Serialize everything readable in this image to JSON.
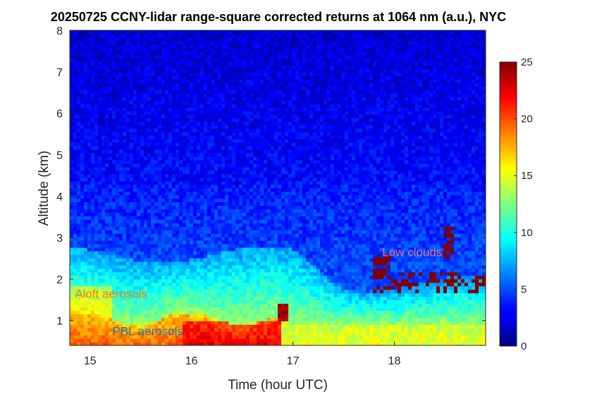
{
  "chart_data": {
    "type": "heatmap",
    "title": "20250725 CCNY-lidar range-square corrected returns at 1064 nm (a.u.), NYC",
    "xlabel": "Time (hour UTC)",
    "ylabel": "Altitude (km)",
    "xlim": [
      14.8,
      18.9
    ],
    "ylim": [
      0.4,
      8
    ],
    "xticks": [
      15,
      16,
      17,
      18
    ],
    "yticks": [
      1,
      2,
      3,
      4,
      5,
      6,
      7,
      8
    ],
    "colorbar": {
      "min": 0,
      "max": 25,
      "ticks": [
        0,
        5,
        10,
        15,
        20,
        25
      ],
      "colormap": "jet"
    },
    "annotations": [
      {
        "text": "Aloft aerosols",
        "x": 14.85,
        "y": 1.55,
        "color": "#f0781e"
      },
      {
        "text": "PBL aerosols",
        "x": 15.22,
        "y": 0.65,
        "color": "#2f6eb4"
      },
      {
        "text": "Low clouds",
        "x": 17.88,
        "y": 2.55,
        "color": "#e8708a"
      }
    ]
  }
}
